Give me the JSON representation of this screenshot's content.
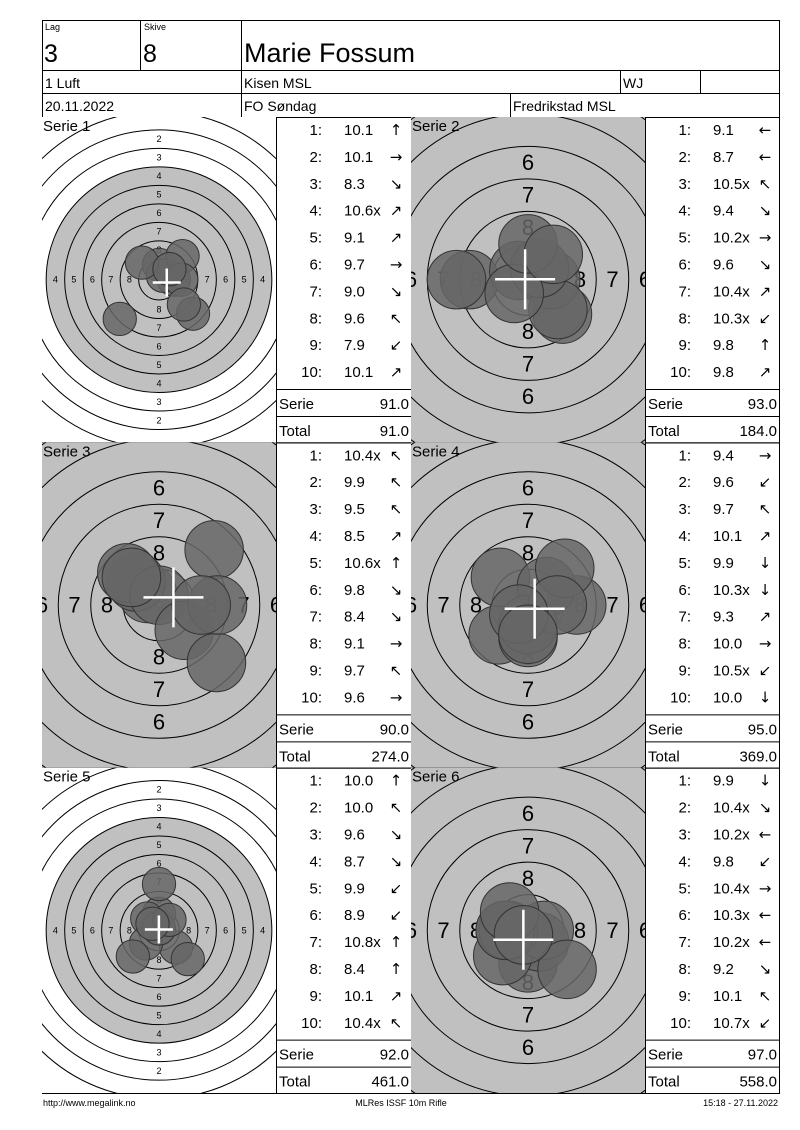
{
  "header": {
    "lag_label": "Lag",
    "lag": "3",
    "skive_label": "Skive",
    "skive": "8",
    "name": "Marie Fossum",
    "class": "1 Luft",
    "club": "Kisen MSL",
    "group": "WJ",
    "date": "20.11.2022",
    "event": "FO Søndag",
    "venue": "Fredrikstad MSL"
  },
  "targets": {
    "full": {
      "labels": [
        "2",
        "3",
        "4",
        "5",
        "6",
        "7",
        "8"
      ]
    },
    "zoom": {
      "labels": [
        "6",
        "7",
        "8"
      ]
    }
  },
  "series": [
    {
      "title": "Serie 1",
      "target": "full",
      "shots": [
        {
          "n": "1:",
          "score": "10.1",
          "dir": "↑"
        },
        {
          "n": "2:",
          "score": "10.1",
          "dir": "→"
        },
        {
          "n": "3:",
          "score": "8.3",
          "dir": "↘"
        },
        {
          "n": "4:",
          "score": "10.6x",
          "dir": "↗"
        },
        {
          "n": "5:",
          "score": "9.1",
          "dir": "↗"
        },
        {
          "n": "6:",
          "score": "9.7",
          "dir": "→"
        },
        {
          "n": "7:",
          "score": "9.0",
          "dir": "↘"
        },
        {
          "n": "8:",
          "score": "9.6",
          "dir": "↖"
        },
        {
          "n": "9:",
          "score": "7.9",
          "dir": "↙"
        },
        {
          "n": "10:",
          "score": "10.1",
          "dir": "↗"
        }
      ],
      "serie_label": "Serie",
      "serie": "91.0",
      "total_label": "Total",
      "total": "91.0"
    },
    {
      "title": "Serie 2",
      "target": "zoom",
      "shots": [
        {
          "n": "1:",
          "score": "9.1",
          "dir": "←"
        },
        {
          "n": "2:",
          "score": "8.7",
          "dir": "←"
        },
        {
          "n": "3:",
          "score": "10.5x",
          "dir": "↖"
        },
        {
          "n": "4:",
          "score": "9.4",
          "dir": "↘"
        },
        {
          "n": "5:",
          "score": "10.2x",
          "dir": "→"
        },
        {
          "n": "6:",
          "score": "9.6",
          "dir": "↘"
        },
        {
          "n": "7:",
          "score": "10.4x",
          "dir": "↗"
        },
        {
          "n": "8:",
          "score": "10.3x",
          "dir": "↙"
        },
        {
          "n": "9:",
          "score": "9.8",
          "dir": "↑"
        },
        {
          "n": "10:",
          "score": "9.8",
          "dir": "↗"
        }
      ],
      "serie_label": "Serie",
      "serie": "93.0",
      "total_label": "Total",
      "total": "184.0"
    },
    {
      "title": "Serie 3",
      "target": "zoom",
      "shots": [
        {
          "n": "1:",
          "score": "10.4x",
          "dir": "↖"
        },
        {
          "n": "2:",
          "score": "9.9",
          "dir": "↖"
        },
        {
          "n": "3:",
          "score": "9.5",
          "dir": "↖"
        },
        {
          "n": "4:",
          "score": "8.5",
          "dir": "↗"
        },
        {
          "n": "5:",
          "score": "10.6x",
          "dir": "↑"
        },
        {
          "n": "6:",
          "score": "9.8",
          "dir": "↘"
        },
        {
          "n": "7:",
          "score": "8.4",
          "dir": "↘"
        },
        {
          "n": "8:",
          "score": "9.1",
          "dir": "→"
        },
        {
          "n": "9:",
          "score": "9.7",
          "dir": "↖"
        },
        {
          "n": "10:",
          "score": "9.6",
          "dir": "→"
        }
      ],
      "serie_label": "Serie",
      "serie": "90.0",
      "total_label": "Total",
      "total": "274.0"
    },
    {
      "title": "Serie 4",
      "target": "zoom",
      "shots": [
        {
          "n": "1:",
          "score": "9.4",
          "dir": "→"
        },
        {
          "n": "2:",
          "score": "9.6",
          "dir": "↙"
        },
        {
          "n": "3:",
          "score": "9.7",
          "dir": "↖"
        },
        {
          "n": "4:",
          "score": "10.1",
          "dir": "↗"
        },
        {
          "n": "5:",
          "score": "9.9",
          "dir": "↓"
        },
        {
          "n": "6:",
          "score": "10.3x",
          "dir": "↓"
        },
        {
          "n": "7:",
          "score": "9.3",
          "dir": "↗"
        },
        {
          "n": "8:",
          "score": "10.0",
          "dir": "→"
        },
        {
          "n": "9:",
          "score": "10.5x",
          "dir": "↙"
        },
        {
          "n": "10:",
          "score": "10.0",
          "dir": "↓"
        }
      ],
      "serie_label": "Serie",
      "serie": "95.0",
      "total_label": "Total",
      "total": "369.0"
    },
    {
      "title": "Serie 5",
      "target": "full",
      "shots": [
        {
          "n": "1:",
          "score": "10.0",
          "dir": "↑"
        },
        {
          "n": "2:",
          "score": "10.0",
          "dir": "↖"
        },
        {
          "n": "3:",
          "score": "9.6",
          "dir": "↘"
        },
        {
          "n": "4:",
          "score": "8.7",
          "dir": "↘"
        },
        {
          "n": "5:",
          "score": "9.9",
          "dir": "↙"
        },
        {
          "n": "6:",
          "score": "8.9",
          "dir": "↙"
        },
        {
          "n": "7:",
          "score": "10.8x",
          "dir": "↑"
        },
        {
          "n": "8:",
          "score": "8.4",
          "dir": "↑"
        },
        {
          "n": "9:",
          "score": "10.1",
          "dir": "↗"
        },
        {
          "n": "10:",
          "score": "10.4x",
          "dir": "↖"
        }
      ],
      "serie_label": "Serie",
      "serie": "92.0",
      "total_label": "Total",
      "total": "461.0"
    },
    {
      "title": "Serie 6",
      "target": "zoom",
      "shots": [
        {
          "n": "1:",
          "score": "9.9",
          "dir": "↓"
        },
        {
          "n": "2:",
          "score": "10.4x",
          "dir": "↘"
        },
        {
          "n": "3:",
          "score": "10.2x",
          "dir": "←"
        },
        {
          "n": "4:",
          "score": "9.8",
          "dir": "↙"
        },
        {
          "n": "5:",
          "score": "10.4x",
          "dir": "→"
        },
        {
          "n": "6:",
          "score": "10.3x",
          "dir": "←"
        },
        {
          "n": "7:",
          "score": "10.2x",
          "dir": "←"
        },
        {
          "n": "8:",
          "score": "9.2",
          "dir": "↘"
        },
        {
          "n": "9:",
          "score": "10.1",
          "dir": "↖"
        },
        {
          "n": "10:",
          "score": "10.7x",
          "dir": "↙"
        }
      ],
      "serie_label": "Serie",
      "serie": "97.0",
      "total_label": "Total",
      "total": "558.0"
    }
  ],
  "footer": {
    "url": "http://www.megalink.no",
    "program": "MLRes ISSF 10m Rifle",
    "timestamp": "15:18 - 27.11.2022"
  }
}
